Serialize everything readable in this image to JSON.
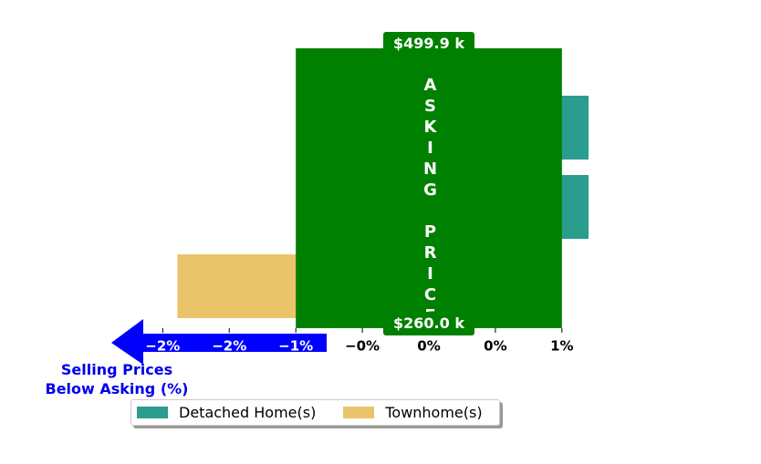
{
  "chart_data": {
    "type": "bar",
    "orientation": "horizontal",
    "categories": [
      null,
      null,
      null
    ],
    "series": [
      {
        "name": "Detached Home(s)",
        "color": "#2a9d8f",
        "values": [
          1.2,
          1.2,
          null
        ]
      },
      {
        "name": "Townhome(s)",
        "color": "#e9c46a",
        "values": [
          null,
          null,
          -1.89
        ]
      }
    ],
    "xlim": [
      -2.4,
      1.2
    ],
    "xticks": [
      {
        "value": -2.0,
        "label": "−2%"
      },
      {
        "value": -1.5,
        "label": "−2%"
      },
      {
        "value": -1.0,
        "label": "−1%"
      },
      {
        "value": -0.5,
        "label": "−0%"
      },
      {
        "value": 0,
        "label": "0%"
      },
      {
        "value": 0.5,
        "label": "0%"
      },
      {
        "value": 1.0,
        "label": "1%"
      }
    ],
    "xlabel": "Selling Prices\nBelow Asking (%)",
    "asking_price": {
      "text": "ASKING PRICE",
      "top_label": "$499.9 k",
      "bottom_label": "$260.0 k",
      "color": "#008000"
    },
    "legend": "lower center"
  }
}
